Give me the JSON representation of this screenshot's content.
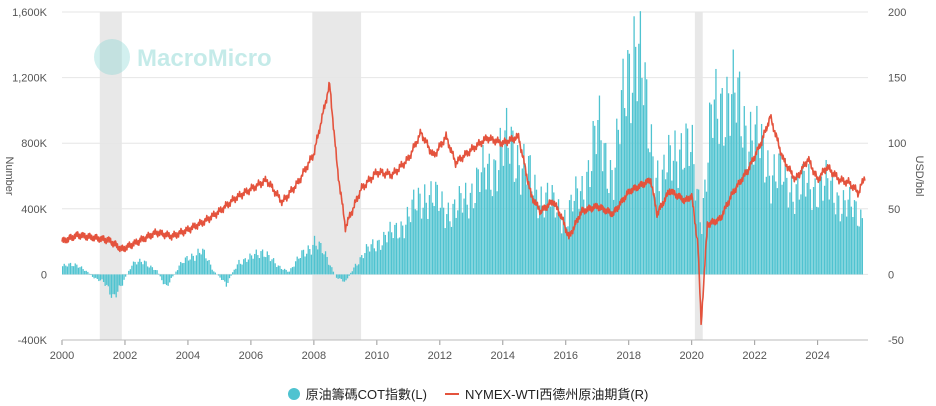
{
  "watermark": "MacroMicro",
  "chart_data": {
    "type": "bar+line",
    "x_ticks": [
      "2000",
      "2002",
      "2004",
      "2006",
      "2008",
      "2010",
      "2012",
      "2014",
      "2016",
      "2018",
      "2020",
      "2022",
      "2024"
    ],
    "xlim": [
      2000,
      2025.6
    ],
    "left_axis": {
      "label": "Number",
      "ticks": [
        "-400K",
        "0",
        "400K",
        "800K",
        "1,200K",
        "1,600K"
      ],
      "ylim": [
        -400000,
        1600000
      ]
    },
    "right_axis": {
      "label": "USD/bbl",
      "ticks": [
        "-50",
        "0",
        "50",
        "100",
        "150",
        "200"
      ],
      "ylim": [
        -50,
        200
      ]
    },
    "recession_bands": [
      [
        2001.2,
        2001.9
      ],
      [
        2007.95,
        2009.5
      ],
      [
        2020.1,
        2020.35
      ]
    ],
    "series": [
      {
        "name": "原油籌碼COT指數(L)",
        "axis": "left",
        "kind": "bar",
        "color": "#4fc3d0",
        "points": [
          [
            2000.0,
            50000
          ],
          [
            2000.5,
            60000
          ],
          [
            2001.0,
            -20000
          ],
          [
            2001.3,
            -50000
          ],
          [
            2001.6,
            -130000
          ],
          [
            2001.9,
            -60000
          ],
          [
            2002.2,
            60000
          ],
          [
            2002.6,
            80000
          ],
          [
            2003.0,
            20000
          ],
          [
            2003.3,
            -80000
          ],
          [
            2003.7,
            50000
          ],
          [
            2004.0,
            100000
          ],
          [
            2004.4,
            150000
          ],
          [
            2004.8,
            20000
          ],
          [
            2005.2,
            -60000
          ],
          [
            2005.6,
            80000
          ],
          [
            2006.0,
            100000
          ],
          [
            2006.4,
            150000
          ],
          [
            2006.8,
            50000
          ],
          [
            2007.2,
            20000
          ],
          [
            2007.6,
            120000
          ],
          [
            2008.0,
            200000
          ],
          [
            2008.4,
            100000
          ],
          [
            2008.7,
            -20000
          ],
          [
            2009.0,
            -40000
          ],
          [
            2009.3,
            60000
          ],
          [
            2009.7,
            150000
          ],
          [
            2010.0,
            200000
          ],
          [
            2010.5,
            250000
          ],
          [
            2011.0,
            350000
          ],
          [
            2011.5,
            500000
          ],
          [
            2012.0,
            420000
          ],
          [
            2012.5,
            380000
          ],
          [
            2013.0,
            520000
          ],
          [
            2013.5,
            620000
          ],
          [
            2014.0,
            750000
          ],
          [
            2014.3,
            800000
          ],
          [
            2014.6,
            650000
          ],
          [
            2015.0,
            520000
          ],
          [
            2015.5,
            430000
          ],
          [
            2016.0,
            350000
          ],
          [
            2016.5,
            520000
          ],
          [
            2017.0,
            850000
          ],
          [
            2017.5,
            600000
          ],
          [
            2018.0,
            1300000
          ],
          [
            2018.2,
            1450000
          ],
          [
            2018.6,
            900000
          ],
          [
            2019.0,
            520000
          ],
          [
            2019.5,
            800000
          ],
          [
            2020.0,
            700000
          ],
          [
            2020.3,
            350000
          ],
          [
            2020.6,
            900000
          ],
          [
            2021.0,
            1100000
          ],
          [
            2021.5,
            1000000
          ],
          [
            2022.0,
            800000
          ],
          [
            2022.5,
            650000
          ],
          [
            2023.0,
            550000
          ],
          [
            2023.5,
            520000
          ],
          [
            2024.0,
            550000
          ],
          [
            2024.5,
            500000
          ],
          [
            2025.0,
            400000
          ],
          [
            2025.4,
            360000
          ]
        ]
      },
      {
        "name": "NYMEX-WTI西德州原油期貨(R)",
        "axis": "right",
        "kind": "line",
        "color": "#e4533d",
        "points": [
          [
            2000.0,
            25
          ],
          [
            2000.5,
            30
          ],
          [
            2001.0,
            28
          ],
          [
            2001.5,
            26
          ],
          [
            2001.9,
            19
          ],
          [
            2002.5,
            26
          ],
          [
            2003.0,
            32
          ],
          [
            2003.5,
            29
          ],
          [
            2004.0,
            34
          ],
          [
            2004.5,
            40
          ],
          [
            2005.0,
            48
          ],
          [
            2005.5,
            58
          ],
          [
            2006.0,
            65
          ],
          [
            2006.5,
            72
          ],
          [
            2007.0,
            55
          ],
          [
            2007.5,
            70
          ],
          [
            2008.0,
            92
          ],
          [
            2008.5,
            145
          ],
          [
            2008.75,
            80
          ],
          [
            2009.0,
            36
          ],
          [
            2009.5,
            65
          ],
          [
            2010.0,
            78
          ],
          [
            2010.5,
            76
          ],
          [
            2011.0,
            88
          ],
          [
            2011.4,
            108
          ],
          [
            2011.8,
            90
          ],
          [
            2012.2,
            105
          ],
          [
            2012.5,
            85
          ],
          [
            2013.0,
            95
          ],
          [
            2013.5,
            104
          ],
          [
            2014.0,
            100
          ],
          [
            2014.5,
            105
          ],
          [
            2014.9,
            60
          ],
          [
            2015.2,
            48
          ],
          [
            2015.6,
            56
          ],
          [
            2015.9,
            42
          ],
          [
            2016.1,
            28
          ],
          [
            2016.5,
            48
          ],
          [
            2017.0,
            52
          ],
          [
            2017.5,
            46
          ],
          [
            2018.0,
            63
          ],
          [
            2018.7,
            72
          ],
          [
            2018.9,
            46
          ],
          [
            2019.3,
            64
          ],
          [
            2019.8,
            56
          ],
          [
            2020.0,
            60
          ],
          [
            2020.2,
            22
          ],
          [
            2020.3,
            -37
          ],
          [
            2020.5,
            38
          ],
          [
            2020.9,
            42
          ],
          [
            2021.3,
            62
          ],
          [
            2021.8,
            80
          ],
          [
            2022.2,
            100
          ],
          [
            2022.5,
            120
          ],
          [
            2022.9,
            88
          ],
          [
            2023.3,
            72
          ],
          [
            2023.7,
            88
          ],
          [
            2024.0,
            72
          ],
          [
            2024.3,
            82
          ],
          [
            2024.7,
            72
          ],
          [
            2025.0,
            70
          ],
          [
            2025.3,
            62
          ],
          [
            2025.5,
            75
          ]
        ]
      }
    ]
  }
}
